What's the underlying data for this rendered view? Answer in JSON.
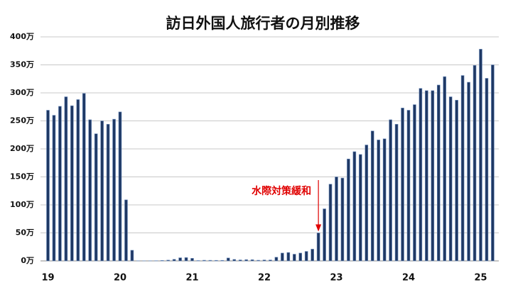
{
  "chart_data": {
    "type": "bar",
    "title": "訪日外国人旅行者の月別推移",
    "categories": [
      "19",
      null,
      null,
      null,
      null,
      null,
      null,
      null,
      null,
      null,
      null,
      null,
      "20",
      null,
      null,
      null,
      null,
      null,
      null,
      null,
      null,
      null,
      null,
      null,
      "21",
      null,
      null,
      null,
      null,
      null,
      null,
      null,
      null,
      null,
      null,
      null,
      "22",
      null,
      null,
      null,
      null,
      null,
      null,
      null,
      null,
      null,
      null,
      null,
      "23",
      null,
      null,
      null,
      null,
      null,
      null,
      null,
      null,
      null,
      null,
      null,
      "24",
      null,
      null,
      null,
      null,
      null,
      null,
      null,
      null,
      null,
      null,
      null,
      "25",
      null,
      null
    ],
    "values": [
      269,
      260,
      276,
      293,
      277,
      288,
      299,
      252,
      227,
      250,
      244,
      253,
      266,
      109,
      19,
      0.3,
      0.2,
      0.3,
      0.4,
      0.9,
      1.4,
      2.8,
      5.6,
      5.9,
      4.6,
      0.7,
      1.2,
      1.1,
      1.0,
      1.0,
      5.2,
      2.6,
      1.8,
      2.2,
      2.1,
      1.2,
      1.7,
      1.7,
      6.6,
      14,
      15,
      12,
      14,
      17,
      21,
      50,
      93,
      137,
      150,
      148,
      182,
      195,
      190,
      207,
      232,
      216,
      218,
      252,
      244,
      273,
      269,
      279,
      308,
      304,
      304,
      314,
      329,
      293,
      287,
      331,
      319,
      349,
      378,
      326,
      350
    ],
    "color": "#1f3864",
    "ylim": [
      0,
      400
    ],
    "yticks": [
      {
        "value": 0,
        "label": "0万"
      },
      {
        "value": 50,
        "label": "50万"
      },
      {
        "value": 100,
        "label": "100万"
      },
      {
        "value": 150,
        "label": "150万"
      },
      {
        "value": 200,
        "label": "200万"
      },
      {
        "value": 250,
        "label": "250万"
      },
      {
        "value": 300,
        "label": "300万"
      },
      {
        "value": 350,
        "label": "350万"
      },
      {
        "value": 400,
        "label": "400万"
      }
    ],
    "grid": true,
    "annotation": {
      "text": "水際対策緩和",
      "index": 45,
      "color": "#e00000"
    }
  }
}
